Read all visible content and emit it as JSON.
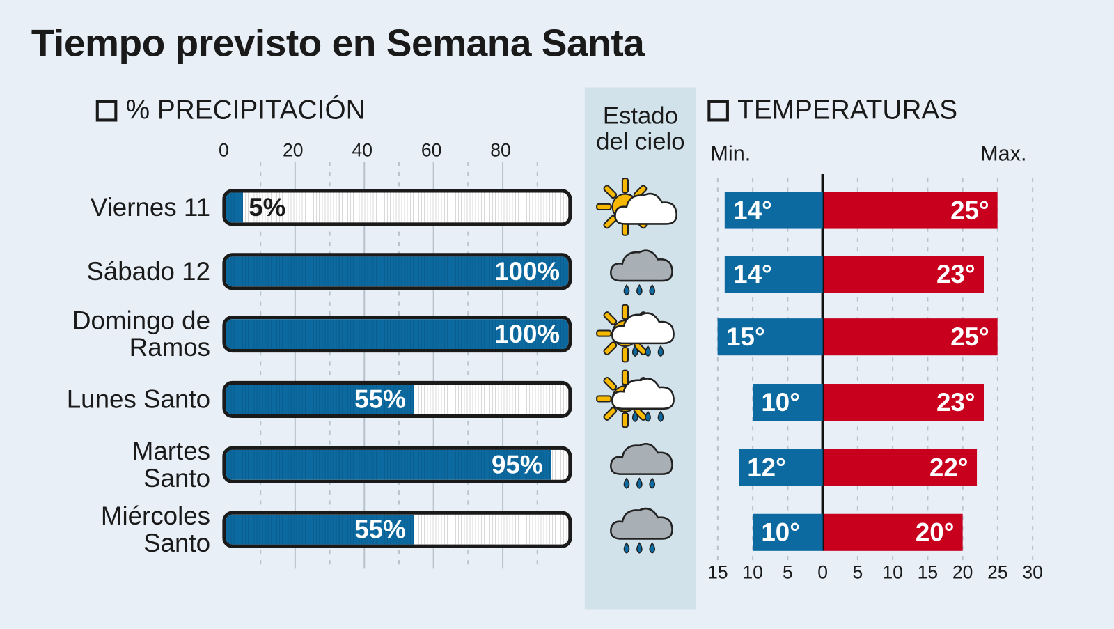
{
  "title": "Tiempo previsto en Semana Santa",
  "precip_header": "% PRECIPITACIÓN",
  "sky_header": [
    "Estado",
    "del cielo"
  ],
  "temp_header": "TEMPERATURAS",
  "temp_min_label": "Min.",
  "temp_max_label": "Max.",
  "colors": {
    "precip": "#0c6aa0",
    "min": "#0c6aa0",
    "max": "#c8001e",
    "background": "#e8eff6",
    "sky_column": "#d2e2ea"
  },
  "chart_data": [
    {
      "type": "bar",
      "title": "% PRECIPITACIÓN",
      "categories": [
        "Viernes 11",
        "Sábado 12",
        "Domingo de Ramos",
        "Lunes Santo",
        "Martes Santo",
        "Miércoles Santo"
      ],
      "values": [
        5,
        100,
        100,
        55,
        95,
        55
      ],
      "data_labels": [
        "5%",
        "100%",
        "100%",
        "55%",
        "95%",
        "55%"
      ],
      "xlim": [
        0,
        100
      ],
      "xticks": [
        "0",
        "20",
        "40",
        "60",
        "80"
      ],
      "grid": true
    },
    {
      "type": "bar",
      "title": "TEMPERATURAS",
      "categories": [
        "Viernes 11",
        "Sábado 12",
        "Domingo de Ramos",
        "Lunes Santo",
        "Martes Santo",
        "Miércoles Santo"
      ],
      "series": [
        {
          "name": "Min.",
          "values": [
            14,
            14,
            15,
            10,
            12,
            10
          ],
          "labels": [
            "14°",
            "14°",
            "15°",
            "10°",
            "12°",
            "10°"
          ]
        },
        {
          "name": "Max.",
          "values": [
            25,
            23,
            25,
            23,
            22,
            20
          ],
          "labels": [
            "25°",
            "23°",
            "25°",
            "23°",
            "22°",
            "20°"
          ]
        }
      ],
      "xlim": [
        -15,
        30
      ],
      "xticks": [
        "15",
        "10",
        "5",
        "0",
        "5",
        "10",
        "15",
        "20",
        "25",
        "30"
      ],
      "grid": true
    }
  ],
  "days": [
    {
      "lines": [
        "Viernes 11"
      ],
      "sky": "sun-cloud-icon"
    },
    {
      "lines": [
        "Sábado 12"
      ],
      "sky": "rain-cloud-icon"
    },
    {
      "lines": [
        "Domingo de",
        "Ramos"
      ],
      "sky": "sun-cloud-rain-icon"
    },
    {
      "lines": [
        "Lunes Santo"
      ],
      "sky": "sun-cloud-rain-icon"
    },
    {
      "lines": [
        "Martes",
        "Santo"
      ],
      "sky": "rain-cloud-icon"
    },
    {
      "lines": [
        "Miércoles",
        "Santo"
      ],
      "sky": "rain-cloud-icon"
    }
  ]
}
